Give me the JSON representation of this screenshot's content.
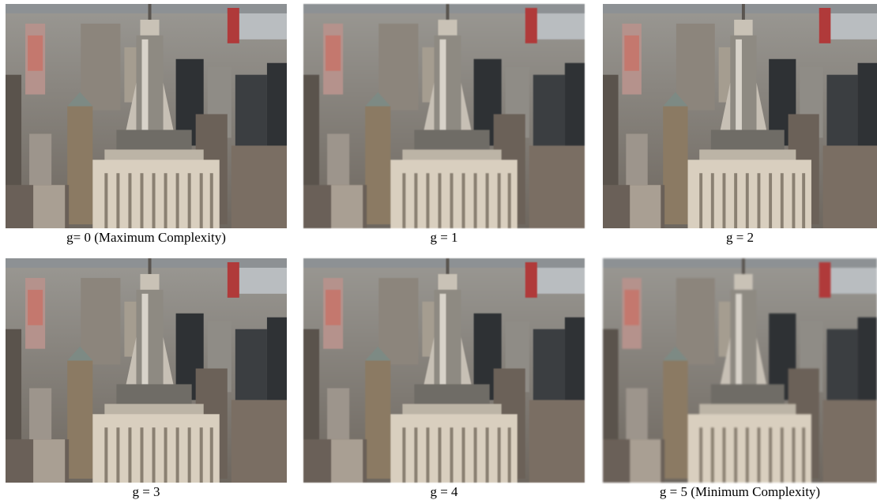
{
  "panels": [
    {
      "caption": "g= 0 (Maximum Complexity)"
    },
    {
      "caption": "g = 1"
    },
    {
      "caption": "g = 2"
    },
    {
      "caption": "g = 3"
    },
    {
      "caption": "g = 4"
    },
    {
      "caption": "g = 5 (Minimum Complexity)"
    }
  ]
}
